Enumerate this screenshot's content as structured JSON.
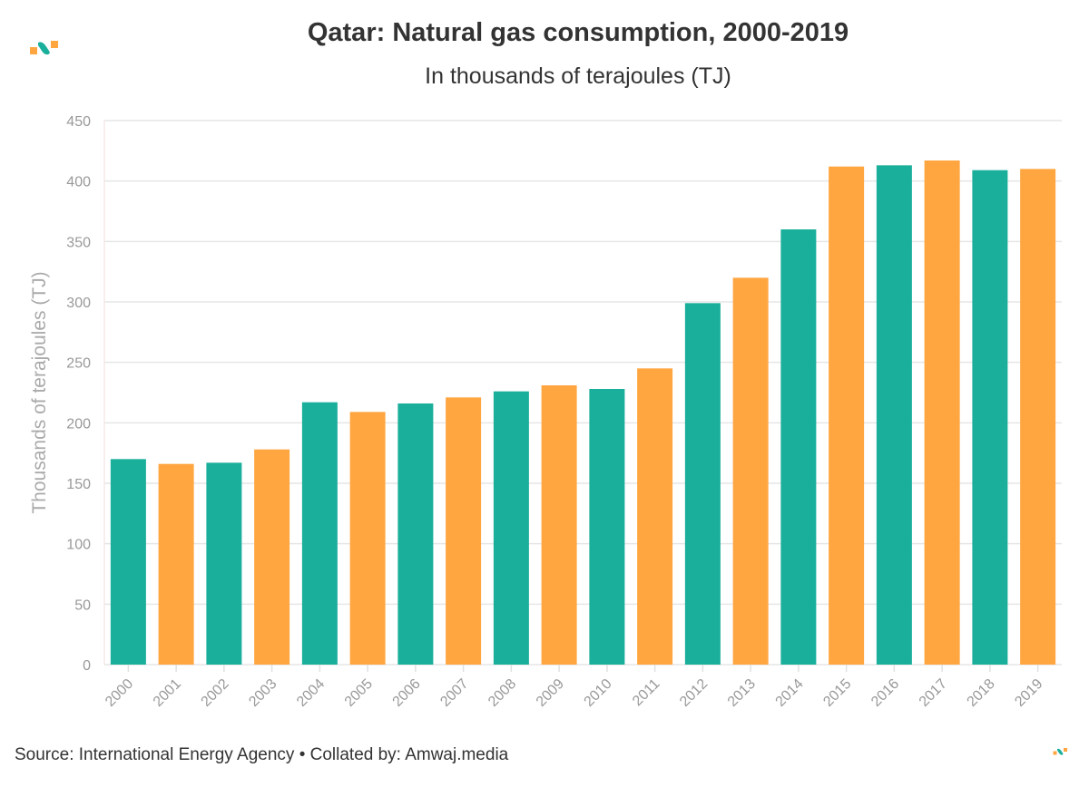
{
  "chart_data": {
    "type": "bar",
    "title": "Qatar: Natural gas consumption, 2000-2019",
    "subtitle": "In thousands of terajoules (TJ)",
    "ylabel": "Thousands of terajoules (TJ)",
    "xlabel": "",
    "ylim": [
      0,
      450
    ],
    "yticks": [
      0,
      50,
      100,
      150,
      200,
      250,
      300,
      350,
      400,
      450
    ],
    "grid": true,
    "categories": [
      "2000",
      "2001",
      "2002",
      "2003",
      "2004",
      "2005",
      "2006",
      "2007",
      "2008",
      "2009",
      "2010",
      "2011",
      "2012",
      "2013",
      "2014",
      "2015",
      "2016",
      "2017",
      "2018",
      "2019"
    ],
    "values": [
      170,
      166,
      167,
      178,
      217,
      209,
      216,
      221,
      226,
      231,
      228,
      245,
      299,
      320,
      360,
      412,
      413,
      417,
      409,
      410
    ],
    "colors": [
      "#1aaf9b",
      "#ffa640"
    ],
    "color_pattern": [
      "#1aaf9b",
      "#ffa640",
      "#1aaf9b",
      "#ffa640",
      "#1aaf9b",
      "#ffa640",
      "#1aaf9b",
      "#ffa640",
      "#1aaf9b",
      "#ffa640",
      "#1aaf9b",
      "#ffa640",
      "#1aaf9b",
      "#ffa640",
      "#1aaf9b",
      "#ffa640",
      "#1aaf9b",
      "#ffa640",
      "#1aaf9b",
      "#ffa640"
    ]
  },
  "footer": {
    "source": "Source: International Energy Agency • Collated by: Amwaj.media"
  },
  "logo": {
    "name": "amwaj-logo-icon",
    "colors": [
      "#1aaf9b",
      "#ffa640"
    ]
  }
}
